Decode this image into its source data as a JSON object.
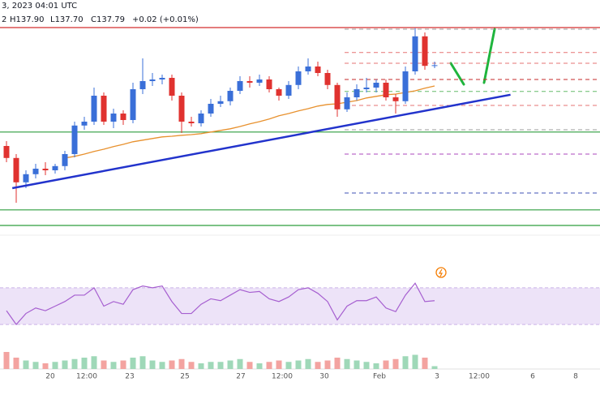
{
  "header": {
    "date": "3, 2023 04:01 UTC",
    "open_fragment": "2",
    "high": "H137.90",
    "low": "L137.70",
    "close": "C137.79",
    "change": "+0.02 (+0.01%)"
  },
  "chart_data": {
    "type": "candlestick",
    "x_labels": [
      "20",
      "12:00",
      "23",
      "25",
      "27",
      "12:00",
      "30",
      "Feb",
      "3",
      "12:00",
      "6",
      "8"
    ],
    "up_color": "#3a6fd8",
    "down_color": "#e0322f",
    "ylim": [
      132.55,
      139.8
    ],
    "open": [
      135.3,
      134.93,
      134.18,
      134.43,
      134.6,
      134.55,
      134.68,
      135.05,
      135.93,
      136.05,
      136.85,
      136.05,
      136.3,
      136.1,
      137.05,
      137.3,
      137.35,
      137.4,
      136.85,
      136.05,
      136.0,
      136.3,
      136.6,
      136.68,
      137.0,
      137.3,
      137.25,
      137.35,
      137.05,
      136.85,
      137.18,
      137.6,
      137.75,
      137.55,
      137.18,
      136.43,
      136.8,
      137.05,
      137.1,
      137.25,
      136.8,
      136.68,
      137.6,
      138.68,
      137.77
    ],
    "high": [
      135.45,
      135.05,
      134.55,
      134.75,
      134.8,
      134.75,
      135.15,
      136.05,
      136.2,
      137.1,
      136.95,
      136.45,
      136.4,
      137.25,
      138.0,
      137.55,
      137.5,
      137.5,
      136.95,
      136.2,
      136.4,
      136.75,
      136.85,
      137.1,
      137.45,
      137.45,
      137.5,
      137.45,
      137.1,
      137.3,
      137.75,
      138.0,
      137.9,
      137.65,
      137.25,
      136.95,
      137.2,
      137.4,
      137.35,
      137.35,
      136.9,
      137.75,
      138.93,
      138.8,
      137.9
    ],
    "low": [
      134.8,
      133.55,
      134.0,
      134.3,
      134.4,
      134.45,
      134.55,
      134.95,
      135.8,
      135.95,
      135.95,
      135.85,
      135.95,
      136.0,
      136.9,
      137.15,
      137.2,
      136.7,
      135.7,
      135.9,
      135.9,
      136.2,
      136.5,
      136.55,
      136.9,
      137.1,
      137.15,
      136.95,
      136.7,
      136.75,
      137.05,
      137.5,
      137.45,
      137.05,
      136.2,
      136.35,
      136.7,
      136.95,
      136.95,
      136.7,
      136.3,
      136.6,
      137.5,
      137.65,
      137.7
    ],
    "close": [
      134.93,
      134.18,
      134.43,
      134.6,
      134.55,
      134.68,
      135.05,
      135.93,
      136.05,
      136.85,
      136.05,
      136.3,
      136.1,
      137.05,
      137.3,
      137.35,
      137.4,
      136.85,
      136.05,
      136.0,
      136.3,
      136.6,
      136.68,
      137.0,
      137.3,
      137.25,
      137.35,
      137.05,
      136.85,
      137.18,
      137.6,
      137.75,
      137.55,
      137.18,
      136.43,
      136.8,
      137.05,
      137.1,
      137.25,
      136.8,
      136.68,
      137.6,
      138.68,
      137.77,
      137.79
    ],
    "ma": {
      "color": "#e8912e",
      "values": [
        null,
        null,
        null,
        null,
        null,
        null,
        134.93,
        134.98,
        135.05,
        135.13,
        135.2,
        135.28,
        135.35,
        135.43,
        135.48,
        135.53,
        135.58,
        135.6,
        135.63,
        135.65,
        135.68,
        135.73,
        135.78,
        135.83,
        135.9,
        135.98,
        136.05,
        136.13,
        136.23,
        136.3,
        136.38,
        136.45,
        136.53,
        136.58,
        136.6,
        136.65,
        136.7,
        136.78,
        136.83,
        136.88,
        136.9,
        136.95,
        137.0,
        137.08,
        137.15
      ]
    },
    "trendline": {
      "color": "#2233cc",
      "x": [
        0.6,
        51.8
      ],
      "y": [
        134.0,
        136.88
      ]
    },
    "hlines": [
      {
        "value": 138.95,
        "color": "#d32f2f"
      },
      {
        "value": 135.73,
        "color": "#2e9e3e"
      },
      {
        "value": 133.33,
        "color": "#2e9e3e"
      },
      {
        "value": 132.85,
        "color": "#2e9e3e"
      }
    ],
    "levels": [
      {
        "value": 138.9,
        "color": "#9e9e9e"
      },
      {
        "value": 138.18,
        "color": "#e57373"
      },
      {
        "value": 137.85,
        "color": "#e57373"
      },
      {
        "value": 137.35,
        "color": "#c62828"
      },
      {
        "value": 136.98,
        "color": "#66bb6a"
      },
      {
        "value": 136.55,
        "color": "#e57373"
      },
      {
        "value": 135.8,
        "color": "#9e9e9e"
      },
      {
        "value": 135.05,
        "color": "#ab47bc"
      },
      {
        "value": 133.85,
        "color": "#3f51b5"
      }
    ],
    "rsi": {
      "color": "#a65fd0",
      "band_color": "#ede3f8",
      "ylim": [
        0,
        100
      ],
      "band": [
        30,
        70
      ],
      "values": [
        45,
        30,
        42,
        48,
        45,
        50,
        55,
        62,
        62,
        70,
        50,
        55,
        52,
        68,
        72,
        70,
        72,
        55,
        42,
        42,
        52,
        58,
        56,
        62,
        68,
        65,
        66,
        58,
        55,
        60,
        68,
        70,
        64,
        55,
        35,
        50,
        56,
        56,
        60,
        48,
        44,
        62,
        75,
        55,
        56
      ]
    },
    "volume": {
      "ylim": [
        0,
        100
      ],
      "values": [
        60,
        40,
        30,
        25,
        20,
        25,
        30,
        35,
        40,
        45,
        30,
        25,
        30,
        40,
        45,
        30,
        25,
        30,
        35,
        25,
        20,
        25,
        25,
        30,
        35,
        25,
        20,
        25,
        30,
        25,
        30,
        35,
        25,
        30,
        40,
        35,
        30,
        25,
        20,
        30,
        35,
        45,
        50,
        40,
        10
      ]
    }
  }
}
